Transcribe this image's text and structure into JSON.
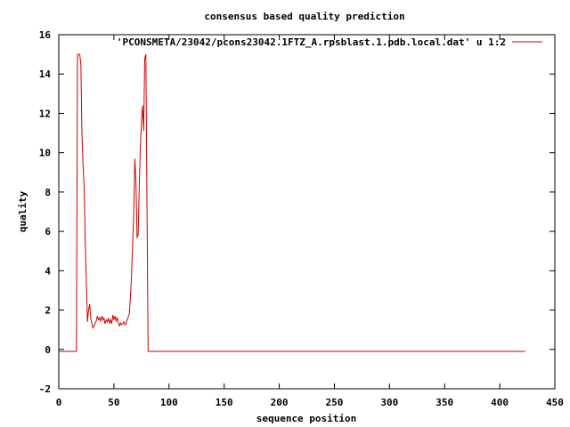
{
  "chart_data": {
    "type": "line",
    "title": "consensus based quality prediction",
    "xlabel": "sequence position",
    "ylabel": "quality",
    "xlim": [
      0,
      450
    ],
    "ylim": [
      -2,
      16
    ],
    "xticks": [
      "0",
      "50",
      "100",
      "150",
      "200",
      "250",
      "300",
      "350",
      "400",
      "450"
    ],
    "yticks": [
      "-2",
      "0",
      "2",
      "4",
      "6",
      "8",
      "10",
      "12",
      "14",
      "16"
    ],
    "grid": false,
    "legend_position": "top-right",
    "series": [
      {
        "name": "'PCONSMETA/23042/pcons23042.1FTZ_A.rpsblast.1.pdb.local.dat' u 1:2",
        "color": "#cc0000",
        "x": [
          0,
          16,
          17,
          18,
          19,
          20,
          21,
          22,
          23,
          24,
          25,
          26,
          27,
          28,
          29,
          30,
          31,
          32,
          33,
          34,
          35,
          36,
          37,
          38,
          39,
          40,
          41,
          42,
          43,
          44,
          45,
          46,
          47,
          48,
          49,
          50,
          51,
          52,
          53,
          54,
          55,
          56,
          57,
          58,
          59,
          60,
          61,
          62,
          63,
          64,
          65,
          66,
          67,
          68,
          69,
          70,
          71,
          72,
          73,
          74,
          75,
          76,
          77,
          78,
          79,
          80,
          81,
          82,
          83,
          84,
          85,
          100,
          150,
          200,
          250,
          300,
          350,
          400,
          423
        ],
        "y": [
          -0.1,
          -0.1,
          15,
          15,
          15,
          14.5,
          11,
          9.4,
          8.2,
          5.5,
          3.5,
          1.4,
          2.0,
          2.3,
          1.6,
          1.3,
          1.1,
          1.2,
          1.3,
          1.45,
          1.7,
          1.5,
          1.6,
          1.45,
          1.7,
          1.5,
          1.6,
          1.3,
          1.5,
          1.4,
          1.6,
          1.35,
          1.5,
          1.3,
          1.75,
          1.5,
          1.7,
          1.45,
          1.6,
          1.35,
          1.2,
          1.35,
          1.25,
          1.3,
          1.4,
          1.25,
          1.3,
          1.5,
          1.65,
          1.8,
          2.7,
          3.8,
          5.3,
          7.0,
          9.7,
          8.6,
          5.7,
          5.8,
          8.4,
          10.3,
          11.5,
          12.4,
          11.1,
          14.8,
          15,
          7.6,
          -0.1,
          -0.1,
          -0.1,
          -0.1,
          -0.1,
          -0.1,
          -0.1,
          -0.1,
          -0.1,
          -0.1,
          -0.1,
          -0.1,
          -0.1
        ]
      }
    ]
  }
}
